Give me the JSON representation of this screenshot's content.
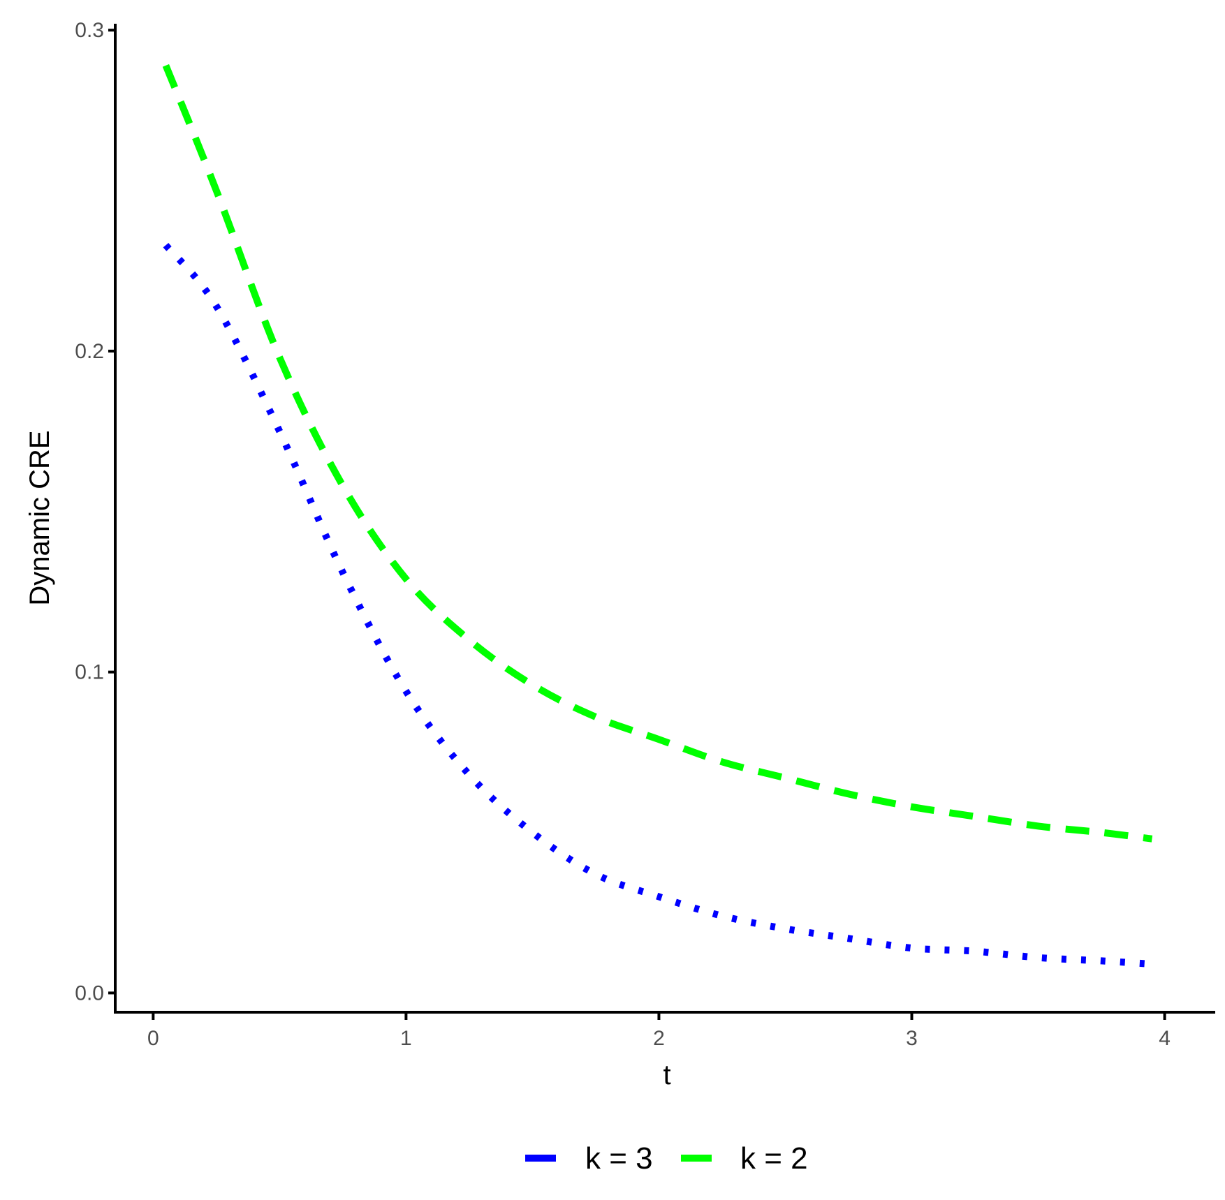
{
  "chart_data": {
    "type": "line",
    "title": "",
    "xlabel": "t",
    "ylabel": "Dynamic CRE",
    "xlim": [
      -0.15,
      4.2
    ],
    "ylim": [
      -0.006,
      0.302
    ],
    "x_ticks": [
      "0",
      "1",
      "2",
      "3",
      "4"
    ],
    "y_ticks": [
      "0.0",
      "0.1",
      "0.2",
      "0.3"
    ],
    "grid": false,
    "legend_position": "bottom",
    "x": [
      0.05,
      0.25,
      0.5,
      0.75,
      1.0,
      1.25,
      1.5,
      1.75,
      2.0,
      2.25,
      2.5,
      2.75,
      3.0,
      3.25,
      3.5,
      3.75,
      3.95
    ],
    "series": [
      {
        "name": "k = 3",
        "color": "#0000ff",
        "line_style": "dotted",
        "values": [
          0.233,
          0.214,
          0.175,
          0.131,
          0.094,
          0.068,
          0.05,
          0.037,
          0.03,
          0.024,
          0.02,
          0.017,
          0.014,
          0.013,
          0.011,
          0.01,
          0.009
        ]
      },
      {
        "name": "k = 2",
        "color": "#00ff00",
        "line_style": "dashed",
        "values": [
          0.289,
          0.25,
          0.198,
          0.158,
          0.129,
          0.11,
          0.096,
          0.086,
          0.079,
          0.072,
          0.067,
          0.062,
          0.058,
          0.055,
          0.052,
          0.05,
          0.048
        ]
      }
    ]
  }
}
